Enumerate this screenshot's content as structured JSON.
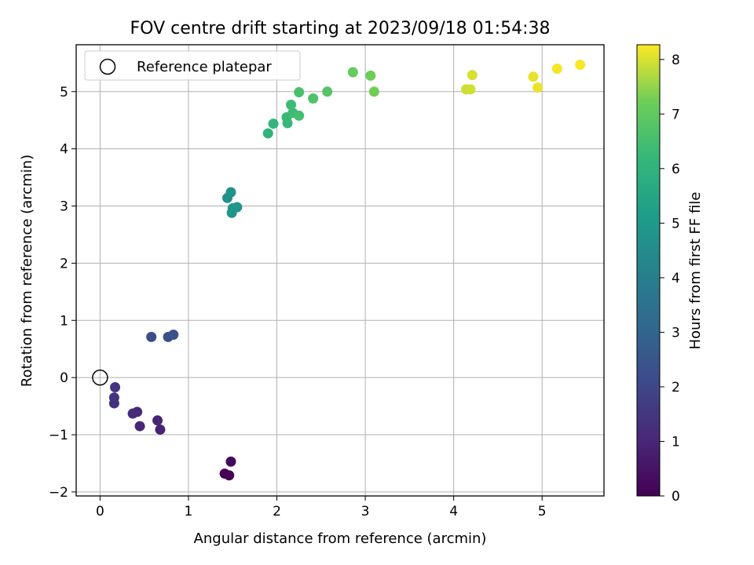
{
  "chart_data": {
    "type": "scatter",
    "title": "FOV centre drift starting at 2023/09/18 01:54:38",
    "xlabel": "Angular distance from reference (arcmin)",
    "ylabel": "Rotation from reference (arcmin)",
    "xlim": [
      -0.27,
      5.7
    ],
    "ylim": [
      -2.07,
      5.82
    ],
    "xticks": [
      0,
      1,
      2,
      3,
      4,
      5
    ],
    "yticks": [
      -2,
      -1,
      0,
      1,
      2,
      3,
      4,
      5
    ],
    "grid": true,
    "legend": {
      "placement": "top-left",
      "entries": [
        "Reference platepar"
      ]
    },
    "reference_point": {
      "x": 0,
      "y": 0
    },
    "colorbar": {
      "label": "Hours from first FF file",
      "colormap": "viridis",
      "range": [
        0,
        8.27
      ],
      "ticks": [
        0,
        1,
        2,
        3,
        4,
        5,
        6,
        7,
        8
      ]
    },
    "points": [
      {
        "x": 1.41,
        "y": -1.68,
        "hours": 0.05
      },
      {
        "x": 1.46,
        "y": -1.71,
        "hours": 0.1
      },
      {
        "x": 1.48,
        "y": -1.47,
        "hours": 0.2
      },
      {
        "x": 0.68,
        "y": -0.91,
        "hours": 0.9
      },
      {
        "x": 0.65,
        "y": -0.75,
        "hours": 0.95
      },
      {
        "x": 0.45,
        "y": -0.85,
        "hours": 1.0
      },
      {
        "x": 0.42,
        "y": -0.6,
        "hours": 1.1
      },
      {
        "x": 0.37,
        "y": -0.63,
        "hours": 1.15
      },
      {
        "x": 0.16,
        "y": -0.45,
        "hours": 1.3
      },
      {
        "x": 0.16,
        "y": -0.35,
        "hours": 1.35
      },
      {
        "x": 0.17,
        "y": -0.17,
        "hours": 1.45
      },
      {
        "x": 0.58,
        "y": 0.71,
        "hours": 2.2
      },
      {
        "x": 0.77,
        "y": 0.71,
        "hours": 2.3
      },
      {
        "x": 0.83,
        "y": 0.75,
        "hours": 2.35
      },
      {
        "x": 1.44,
        "y": 3.14,
        "hours": 4.7
      },
      {
        "x": 1.48,
        "y": 3.24,
        "hours": 4.75
      },
      {
        "x": 1.49,
        "y": 2.88,
        "hours": 4.8
      },
      {
        "x": 1.55,
        "y": 2.98,
        "hours": 4.85
      },
      {
        "x": 1.5,
        "y": 2.96,
        "hours": 4.9
      },
      {
        "x": 1.9,
        "y": 4.27,
        "hours": 6.0
      },
      {
        "x": 1.96,
        "y": 4.44,
        "hours": 6.1
      },
      {
        "x": 2.12,
        "y": 4.45,
        "hours": 6.2
      },
      {
        "x": 2.11,
        "y": 4.55,
        "hours": 6.3
      },
      {
        "x": 2.16,
        "y": 4.77,
        "hours": 6.35
      },
      {
        "x": 2.18,
        "y": 4.63,
        "hours": 6.4
      },
      {
        "x": 2.25,
        "y": 4.58,
        "hours": 6.5
      },
      {
        "x": 2.25,
        "y": 4.99,
        "hours": 6.6
      },
      {
        "x": 2.41,
        "y": 4.88,
        "hours": 6.7
      },
      {
        "x": 2.57,
        "y": 5.0,
        "hours": 6.8
      },
      {
        "x": 2.86,
        "y": 5.34,
        "hours": 7.1
      },
      {
        "x": 3.06,
        "y": 5.28,
        "hours": 7.2
      },
      {
        "x": 3.1,
        "y": 5.0,
        "hours": 7.25
      },
      {
        "x": 4.14,
        "y": 5.04,
        "hours": 7.9
      },
      {
        "x": 4.19,
        "y": 5.04,
        "hours": 7.95
      },
      {
        "x": 4.21,
        "y": 5.29,
        "hours": 8.0
      },
      {
        "x": 4.9,
        "y": 5.26,
        "hours": 8.1
      },
      {
        "x": 4.95,
        "y": 5.07,
        "hours": 8.15
      },
      {
        "x": 5.17,
        "y": 5.4,
        "hours": 8.2
      },
      {
        "x": 5.43,
        "y": 5.47,
        "hours": 8.25
      }
    ]
  }
}
